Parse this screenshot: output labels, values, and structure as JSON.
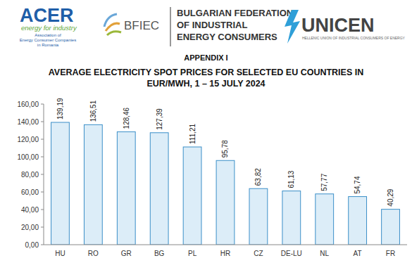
{
  "header": {
    "acer": {
      "name": "ACER",
      "tagline": "energy for industry",
      "lines": [
        "Association of",
        "Energy Consumer Companies",
        "in Romania"
      ]
    },
    "bfiec": "BFIEC",
    "federation": [
      "BULGARIAN FEDERATION",
      "OF INDUSTRIAL",
      "ENERGY CONSUMERS"
    ],
    "unicen": {
      "name": "UNICEN",
      "tagline": "HELLENIC UNION OF INDUSTRIAL CONSUMERS OF ENERGY"
    },
    "appendix": "APPENDIX I"
  },
  "chart_data": {
    "type": "bar",
    "title": "AVERAGE ELECTRICITY SPOT PRICES FOR SELECTED EU COUNTRIES IN EUR/MWH, 1 – 15 JULY 2024",
    "categories": [
      "HU",
      "RO",
      "GR",
      "BG",
      "PL",
      "HR",
      "CZ",
      "DE-LU",
      "NL",
      "AT",
      "FR"
    ],
    "values": [
      139.19,
      136.51,
      128.46,
      127.39,
      111.21,
      95.78,
      63.82,
      61.13,
      57.77,
      54.74,
      40.29
    ],
    "value_labels": [
      "139,19",
      "136,51",
      "128,46",
      "127,39",
      "111,21",
      "95,78",
      "63,82",
      "61,13",
      "57,77",
      "54,74",
      "40,29"
    ],
    "color": "#dcedf8",
    "ylim": [
      0,
      160
    ],
    "yticks": [
      {
        "value": 0,
        "label": "0,00"
      },
      {
        "value": 20,
        "label": "20,00"
      },
      {
        "value": 40,
        "label": "40,00"
      },
      {
        "value": 60,
        "label": "60,00"
      },
      {
        "value": 80,
        "label": "80,00"
      },
      {
        "value": 100,
        "label": "100,00"
      },
      {
        "value": 120,
        "label": "120,00"
      },
      {
        "value": 140,
        "label": "140,00"
      },
      {
        "value": 160,
        "label": "160,00"
      }
    ],
    "grid": false,
    "data_labels": true
  }
}
